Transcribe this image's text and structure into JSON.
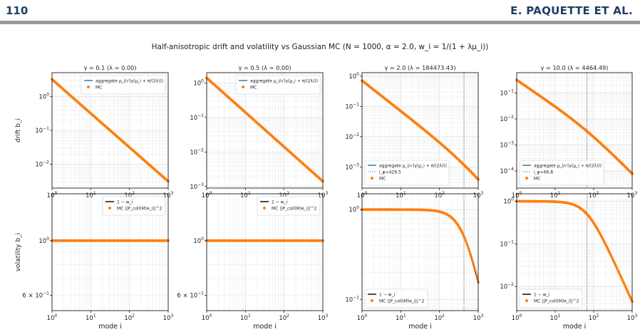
{
  "header": {
    "page_number": "110",
    "authors": "E. PAQUETTE ET AL."
  },
  "figure": {
    "suptitle": "Half-anisotropic drift and volatility vs Gaussian MC (N = 1000, α = 2.0, w_i = 1/(1 + λμ_i))",
    "row_labels": [
      "drift b_i",
      "volatility b_i"
    ],
    "xlabel": "mode i"
  },
  "colors": {
    "aggregate_line": "#1f77b4",
    "mc_points": "#ff7f0e",
    "one_minus_w_line": "#000000",
    "grid": "#dddddd",
    "vline": "#555555"
  },
  "chart_data": [
    {
      "type": "scatter",
      "panel": "drift",
      "title": "γ = 0.1  (λ = 0.00)",
      "xscale": "log",
      "yscale": "log",
      "xlim": [
        1,
        1000
      ],
      "ylim": [
        0.002,
        5
      ],
      "xticks": [
        "10^0",
        "10^1",
        "10^2",
        "10^3"
      ],
      "yticks": [
        {
          "v": 0.01,
          "l": "10^-2"
        },
        {
          "v": 0.1,
          "l": "10^-1"
        },
        {
          "v": 1,
          "l": "10^0"
        }
      ],
      "legend": {
        "loc": "upper-right",
        "entries": [
          "aggregate μ_i/√(γ(μ_i + π/(2λ)))",
          "MC"
        ]
      },
      "series": [
        {
          "name": "aggregate μ_i/√(γ(μ_i + π/(2λ)))",
          "kind": "line",
          "model": {
            "a": 3.16,
            "p": 1.0,
            "K": 0
          }
        },
        {
          "name": "MC",
          "kind": "points",
          "model": {
            "a": 3.16,
            "p": 1.0,
            "K": 0
          }
        }
      ]
    },
    {
      "type": "scatter",
      "panel": "drift",
      "title": "γ = 0.5  (λ = 0.00)",
      "xscale": "log",
      "yscale": "log",
      "xlim": [
        1,
        1000
      ],
      "ylim": [
        0.0009,
        2
      ],
      "xticks": [
        "10^0",
        "10^1",
        "10^2",
        "10^3"
      ],
      "yticks": [
        {
          "v": 0.001,
          "l": "10^-3"
        },
        {
          "v": 0.01,
          "l": "10^-2"
        },
        {
          "v": 0.1,
          "l": "10^-1"
        },
        {
          "v": 1,
          "l": "10^0"
        }
      ],
      "legend": {
        "loc": "upper-right",
        "entries": [
          "aggregate μ_i/√(γ(μ_i + π/(2λ)))",
          "MC"
        ]
      },
      "series": [
        {
          "name": "aggregate μ_i/√(γ(μ_i + π/(2λ)))",
          "kind": "line",
          "model": {
            "a": 1.41,
            "p": 1.0,
            "K": 0
          }
        },
        {
          "name": "MC",
          "kind": "points",
          "model": {
            "a": 1.41,
            "p": 1.0,
            "K": 0
          }
        }
      ]
    },
    {
      "type": "scatter",
      "panel": "drift",
      "title": "γ = 2.0  (λ = 184473.43)",
      "xscale": "log",
      "yscale": "log",
      "xlim": [
        1,
        1000
      ],
      "ylim": [
        0.0002,
        1.3
      ],
      "xticks": [
        "10^0",
        "10^1",
        "10^2",
        "10^3"
      ],
      "yticks": [
        {
          "v": 0.001,
          "l": "10^-3"
        },
        {
          "v": 0.01,
          "l": "10^-2"
        },
        {
          "v": 0.1,
          "l": "10^-1"
        },
        {
          "v": 1,
          "l": "10^0"
        }
      ],
      "vline": 429.5,
      "legend": {
        "loc": "lower-left",
        "entries": [
          "aggregate μ_i/√(γ(μ_i + π/(2λ)))",
          "i_φ≈429.5",
          "MC"
        ]
      },
      "series": [
        {
          "name": "aggregate μ_i/√(γ(μ_i + π/(2λ)))",
          "kind": "line",
          "model": {
            "a": 0.707,
            "p": 1.0,
            "K": 429.5
          }
        },
        {
          "name": "MC",
          "kind": "points",
          "model": {
            "a": 0.707,
            "p": 1.0,
            "K": 429.5
          }
        }
      ]
    },
    {
      "type": "scatter",
      "panel": "drift",
      "title": "γ = 10.0  (λ = 4464.49)",
      "xscale": "log",
      "yscale": "log",
      "xlim": [
        1,
        1000
      ],
      "ylim": [
        2.2e-05,
        0.6
      ],
      "xticks": [
        "10^0",
        "10^1",
        "10^2",
        "10^3"
      ],
      "yticks": [
        {
          "v": 0.0001,
          "l": "10^-4"
        },
        {
          "v": 0.001,
          "l": "10^-3"
        },
        {
          "v": 0.01,
          "l": "10^-2"
        },
        {
          "v": 0.1,
          "l": "10^-1"
        }
      ],
      "vline": 66.8,
      "legend": {
        "loc": "lower-left",
        "entries": [
          "aggregate μ_i/√(γ(μ_i + π/(2λ)))",
          "i_φ≈66.8",
          "MC"
        ]
      },
      "series": [
        {
          "name": "aggregate μ_i/√(γ(μ_i + π/(2λ)))",
          "kind": "line",
          "model": {
            "a": 0.316,
            "p": 1.0,
            "K": 66.8
          }
        },
        {
          "name": "MC",
          "kind": "points",
          "model": {
            "a": 0.316,
            "p": 1.0,
            "K": 66.8
          }
        }
      ]
    },
    {
      "type": "scatter",
      "panel": "volatility",
      "title": "",
      "xscale": "log",
      "yscale": "log",
      "xlim": [
        1,
        1000
      ],
      "ylim": [
        0.52,
        1.55
      ],
      "xticks": [
        "10^0",
        "10^1",
        "10^2",
        "10^3"
      ],
      "yticks": [
        {
          "v": 0.6,
          "l": "6 × 10^-1"
        },
        {
          "v": 1,
          "l": "10^0"
        }
      ],
      "legend": {
        "loc": "upper-right",
        "entries": [
          "1 − w_i",
          "MC ||P_coll(M)e_i||^2"
        ]
      },
      "series": [
        {
          "name": "1 − w_i",
          "kind": "line",
          "model": {
            "const": 1.0
          }
        },
        {
          "name": "MC ||P_coll(M)e_i||^2",
          "kind": "points",
          "model": {
            "const": 1.0
          }
        }
      ]
    },
    {
      "type": "scatter",
      "panel": "volatility",
      "title": "",
      "xscale": "log",
      "yscale": "log",
      "xlim": [
        1,
        1000
      ],
      "ylim": [
        0.52,
        1.55
      ],
      "xticks": [
        "10^0",
        "10^1",
        "10^2",
        "10^3"
      ],
      "yticks": [
        {
          "v": 0.6,
          "l": "6 × 10^-1"
        },
        {
          "v": 1,
          "l": "10^0"
        }
      ],
      "legend": {
        "loc": "upper-right",
        "entries": [
          "1 − w_i",
          "MC ||P_coll(M)e_i||^2"
        ]
      },
      "series": [
        {
          "name": "1 − w_i",
          "kind": "line",
          "model": {
            "const": 1.0
          }
        },
        {
          "name": "MC ||P_coll(M)e_i||^2",
          "kind": "points",
          "model": {
            "const": 1.0
          }
        }
      ]
    },
    {
      "type": "scatter",
      "panel": "volatility",
      "title": "",
      "xscale": "log",
      "yscale": "log",
      "xlim": [
        1,
        1000
      ],
      "ylim": [
        0.075,
        1.5
      ],
      "xticks": [
        "10^0",
        "10^1",
        "10^2",
        "10^3"
      ],
      "yticks": [
        {
          "v": 0.1,
          "l": "10^-1"
        },
        {
          "v": 1,
          "l": "10^0"
        }
      ],
      "vline": 429.5,
      "legend": {
        "loc": "lower-left",
        "entries": [
          "1 − w_i",
          "MC ||P_coll(M)e_i||^2"
        ]
      },
      "series": [
        {
          "name": "1 − w_i",
          "kind": "line",
          "model": {
            "K": 429.5,
            "q": 2.0
          }
        },
        {
          "name": "MC ||P_coll(M)e_i||^2",
          "kind": "points",
          "model": {
            "K": 429.5,
            "q": 2.0
          }
        }
      ]
    },
    {
      "type": "scatter",
      "panel": "volatility",
      "title": "",
      "xscale": "log",
      "yscale": "log",
      "xlim": [
        1,
        1000
      ],
      "ylim": [
        0.0027,
        1.5
      ],
      "xticks": [
        "10^0",
        "10^1",
        "10^2",
        "10^3"
      ],
      "yticks": [
        {
          "v": 0.01,
          "l": "10^-2"
        },
        {
          "v": 0.1,
          "l": "10^-1"
        },
        {
          "v": 1,
          "l": "10^0"
        }
      ],
      "vline": 66.8,
      "legend": {
        "loc": "lower-left",
        "entries": [
          "1 − w_i",
          "MC ||P_coll(M)e_i||^2"
        ]
      },
      "series": [
        {
          "name": "1 − w_i",
          "kind": "line",
          "model": {
            "K": 66.8,
            "q": 2.0
          }
        },
        {
          "name": "MC ||P_coll(M)e_i||^2",
          "kind": "points",
          "model": {
            "K": 66.8,
            "q": 2.0
          }
        }
      ]
    }
  ]
}
